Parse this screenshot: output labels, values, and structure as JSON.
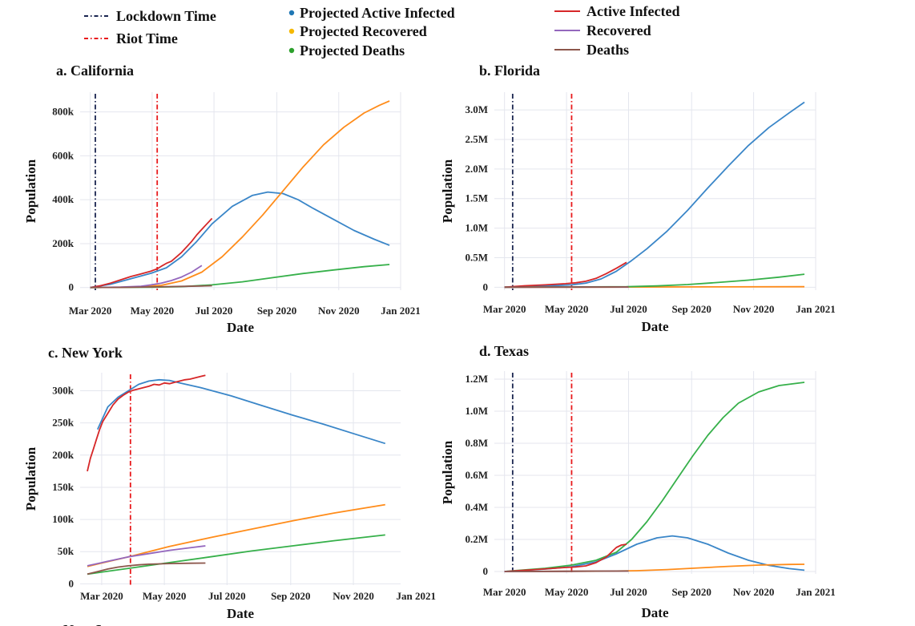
{
  "legend": {
    "items": [
      {
        "label": "Lockdown Time",
        "color": "#1a2550",
        "style": "dashdot",
        "kind": "line"
      },
      {
        "label": "Riot Time",
        "color": "#e8191c",
        "style": "dashdot",
        "kind": "line"
      },
      {
        "label": "Projected Active Infected",
        "color": "#1f77b4",
        "kind": "dot"
      },
      {
        "label": "Projected Recovered",
        "color": "#f5b800",
        "kind": "dot"
      },
      {
        "label": "Projected Deaths",
        "color": "#2ca02c",
        "kind": "dot"
      },
      {
        "label": "Active Infected",
        "color": "#d62728",
        "kind": "line"
      },
      {
        "label": "Recovered",
        "color": "#9467bd",
        "kind": "line"
      },
      {
        "label": "Deaths",
        "color": "#8c564b",
        "kind": "line"
      }
    ]
  },
  "colors": {
    "projected_active": "#3a86c8",
    "projected_recovered": "#ff8c1a",
    "projected_deaths": "#36b04a",
    "active": "#d62728",
    "recovered": "#9467bd",
    "deaths": "#8c564b",
    "lockdown": "#1a2550",
    "riot": "#e8191c",
    "grid": "#e4e6ee"
  },
  "chart_data": [
    {
      "id": "a",
      "type": "line",
      "prefix": "a.",
      "title": "California",
      "xlabel": "Date",
      "ylabel": "Population",
      "xlim": [
        -10,
        306
      ],
      "ylim": [
        -12000,
        890000
      ],
      "xticks": [
        {
          "v": 0,
          "label": "Mar 2020"
        },
        {
          "v": 61,
          "label": "May 2020"
        },
        {
          "v": 122,
          "label": "Jul 2020"
        },
        {
          "v": 184,
          "label": "Sep 2020"
        },
        {
          "v": 245,
          "label": "Nov 2020"
        },
        {
          "v": 306,
          "label": "Jan 2021"
        }
      ],
      "yticks": [
        {
          "v": 0,
          "label": "0"
        },
        {
          "v": 200000,
          "label": "200k"
        },
        {
          "v": 400000,
          "label": "400k"
        },
        {
          "v": 600000,
          "label": "600k"
        },
        {
          "v": 800000,
          "label": "800k"
        }
      ],
      "lockdown": 5,
      "riot": 66,
      "series": [
        {
          "name": "Projected Active Infected",
          "key": "projected_active",
          "x": [
            0,
            20,
            40,
            60,
            75,
            90,
            105,
            120,
            140,
            160,
            175,
            190,
            205,
            220,
            240,
            260,
            280,
            295
          ],
          "y": [
            0,
            15000,
            40000,
            65000,
            90000,
            140000,
            210000,
            290000,
            370000,
            420000,
            435000,
            428000,
            400000,
            360000,
            310000,
            260000,
            220000,
            192000
          ]
        },
        {
          "name": "Projected Recovered",
          "key": "projected_recovered",
          "x": [
            0,
            40,
            70,
            90,
            110,
            130,
            150,
            170,
            190,
            210,
            230,
            250,
            270,
            285,
            295
          ],
          "y": [
            0,
            2000,
            10000,
            30000,
            70000,
            140000,
            230000,
            330000,
            440000,
            550000,
            650000,
            730000,
            795000,
            830000,
            850000
          ]
        },
        {
          "name": "Projected Deaths",
          "key": "projected_deaths",
          "x": [
            0,
            60,
            90,
            120,
            150,
            180,
            210,
            240,
            270,
            295
          ],
          "y": [
            0,
            1500,
            4000,
            12000,
            26000,
            45000,
            64000,
            80000,
            95000,
            105000
          ]
        },
        {
          "name": "Active Infected",
          "key": "active",
          "x": [
            0,
            10,
            20,
            30,
            40,
            50,
            60,
            66,
            70,
            75,
            80,
            85,
            90,
            95,
            100,
            105,
            110,
            115,
            120
          ],
          "y": [
            0,
            8000,
            20000,
            35000,
            50000,
            62000,
            75000,
            85000,
            97000,
            110000,
            120000,
            140000,
            160000,
            185000,
            210000,
            240000,
            265000,
            290000,
            315000
          ]
        },
        {
          "name": "Recovered",
          "key": "recovered",
          "x": [
            0,
            30,
            50,
            60,
            70,
            80,
            90,
            100,
            110
          ],
          "y": [
            0,
            2000,
            6000,
            12000,
            20000,
            32000,
            48000,
            70000,
            100000
          ]
        },
        {
          "name": "Deaths",
          "key": "deaths",
          "x": [
            0,
            30,
            60,
            90,
            110,
            120
          ],
          "y": [
            0,
            500,
            2500,
            5000,
            7000,
            8000
          ]
        }
      ]
    },
    {
      "id": "b",
      "type": "line",
      "prefix": "b.",
      "title": "Florida",
      "xlabel": "Date",
      "ylabel": "Population",
      "xlim": [
        -10,
        306
      ],
      "ylim": [
        -50000,
        3300000
      ],
      "xticks": [
        {
          "v": 0,
          "label": "Mar 2020"
        },
        {
          "v": 61,
          "label": "May 2020"
        },
        {
          "v": 122,
          "label": "Jul 2020"
        },
        {
          "v": 184,
          "label": "Sep 2020"
        },
        {
          "v": 245,
          "label": "Nov 2020"
        },
        {
          "v": 306,
          "label": "Jan 2021"
        }
      ],
      "yticks": [
        {
          "v": 0,
          "label": "0"
        },
        {
          "v": 500000,
          "label": "0.5M"
        },
        {
          "v": 1000000,
          "label": "1.0M"
        },
        {
          "v": 1500000,
          "label": "1.5M"
        },
        {
          "v": 2000000,
          "label": "2.0M"
        },
        {
          "v": 2500000,
          "label": "2.5M"
        },
        {
          "v": 3000000,
          "label": "3.0M"
        }
      ],
      "lockdown": 8,
      "riot": 66,
      "series": [
        {
          "name": "Projected Active Infected",
          "key": "projected_active",
          "x": [
            0,
            40,
            66,
            80,
            95,
            110,
            125,
            140,
            160,
            180,
            200,
            220,
            240,
            260,
            280,
            295
          ],
          "y": [
            0,
            20000,
            40000,
            70000,
            140000,
            270000,
            450000,
            650000,
            950000,
            1300000,
            1680000,
            2050000,
            2400000,
            2700000,
            2950000,
            3130000
          ]
        },
        {
          "name": "Projected Recovered",
          "key": "projected_recovered",
          "x": [
            0,
            100,
            200,
            295
          ],
          "y": [
            0,
            2000,
            5000,
            8000
          ]
        },
        {
          "name": "Projected Deaths",
          "key": "projected_deaths",
          "x": [
            0,
            120,
            150,
            180,
            210,
            240,
            270,
            295
          ],
          "y": [
            0,
            8000,
            22000,
            45000,
            80000,
            120000,
            170000,
            220000
          ]
        },
        {
          "name": "Active Infected",
          "key": "active",
          "x": [
            0,
            20,
            40,
            60,
            70,
            80,
            90,
            100,
            110,
            120
          ],
          "y": [
            0,
            25000,
            40000,
            60000,
            75000,
            100000,
            150000,
            230000,
            320000,
            420000
          ]
        },
        {
          "name": "Recovered",
          "key": "recovered",
          "x": [
            0,
            60,
            122
          ],
          "y": [
            0,
            1000,
            2000
          ]
        },
        {
          "name": "Deaths",
          "key": "deaths",
          "x": [
            0,
            60,
            122
          ],
          "y": [
            0,
            2000,
            4000
          ]
        }
      ]
    },
    {
      "id": "c",
      "type": "line",
      "prefix": "c.",
      "title": "New York",
      "xlabel": "Date",
      "ylabel": "Population",
      "xlim": [
        -7,
        305
      ],
      "ylim": [
        -2000,
        328000
      ],
      "xticks": [
        {
          "v": 14,
          "label": "Mar 2020"
        },
        {
          "v": 75,
          "label": "May 2020"
        },
        {
          "v": 136,
          "label": "Jul 2020"
        },
        {
          "v": 198,
          "label": "Sep 2020"
        },
        {
          "v": 259,
          "label": "Nov 2020"
        },
        {
          "v": 320,
          "label": "Jan 2021"
        }
      ],
      "yticks": [
        {
          "v": 0,
          "label": "0"
        },
        {
          "v": 50000,
          "label": "50k"
        },
        {
          "v": 100000,
          "label": "100k"
        },
        {
          "v": 150000,
          "label": "150k"
        },
        {
          "v": 200000,
          "label": "200k"
        },
        {
          "v": 250000,
          "label": "250k"
        },
        {
          "v": 300000,
          "label": "300k"
        }
      ],
      "lockdown": null,
      "riot": 42,
      "series": [
        {
          "name": "Projected Active Infected",
          "key": "projected_active",
          "x": [
            10,
            20,
            30,
            40,
            50,
            60,
            70,
            80,
            90,
            110,
            140,
            170,
            200,
            230,
            260,
            290
          ],
          "y": [
            240000,
            275000,
            290000,
            300000,
            310000,
            315000,
            317000,
            316000,
            312000,
            305000,
            292000,
            277000,
            262000,
            248000,
            233000,
            218000
          ]
        },
        {
          "name": "Projected Recovered",
          "key": "projected_recovered",
          "x": [
            0,
            40,
            80,
            120,
            160,
            200,
            240,
            290
          ],
          "y": [
            27000,
            42000,
            58000,
            72000,
            85000,
            98000,
            110000,
            123000
          ]
        },
        {
          "name": "Projected Deaths",
          "key": "projected_deaths",
          "x": [
            0,
            40,
            80,
            120,
            160,
            200,
            240,
            290
          ],
          "y": [
            15000,
            24000,
            33000,
            42000,
            51000,
            59000,
            67000,
            76000
          ]
        },
        {
          "name": "Active Infected",
          "key": "active",
          "x": [
            0,
            3,
            6,
            9,
            12,
            15,
            20,
            25,
            30,
            35,
            40,
            45,
            50,
            55,
            60,
            65,
            70,
            75,
            80,
            85,
            90,
            95,
            100,
            105,
            110,
            115
          ],
          "y": [
            175000,
            195000,
            210000,
            225000,
            240000,
            252000,
            265000,
            278000,
            287000,
            293000,
            298000,
            301000,
            303000,
            305000,
            307000,
            310000,
            309000,
            312000,
            311000,
            313000,
            315000,
            317000,
            318000,
            320000,
            322000,
            324000
          ]
        },
        {
          "name": "Recovered",
          "key": "recovered",
          "x": [
            0,
            20,
            40,
            60,
            80,
            100,
            115
          ],
          "y": [
            28000,
            35000,
            42000,
            47000,
            52000,
            56000,
            59000
          ]
        },
        {
          "name": "Deaths",
          "key": "deaths",
          "x": [
            0,
            10,
            20,
            30,
            40,
            50,
            60,
            80,
            100,
            115
          ],
          "y": [
            15000,
            19000,
            23000,
            26000,
            28000,
            29500,
            30500,
            31500,
            32000,
            32300
          ]
        }
      ]
    },
    {
      "id": "d",
      "type": "line",
      "prefix": "d.",
      "title": "Texas",
      "xlabel": "Date",
      "ylabel": "Population",
      "xlim": [
        -10,
        306
      ],
      "ylim": [
        -15000,
        1250000
      ],
      "xticks": [
        {
          "v": 0,
          "label": "Mar 2020"
        },
        {
          "v": 61,
          "label": "May 2020"
        },
        {
          "v": 122,
          "label": "Jul 2020"
        },
        {
          "v": 184,
          "label": "Sep 2020"
        },
        {
          "v": 245,
          "label": "Nov 2020"
        },
        {
          "v": 306,
          "label": "Jan 2021"
        }
      ],
      "yticks": [
        {
          "v": 0,
          "label": "0"
        },
        {
          "v": 200000,
          "label": "0.2M"
        },
        {
          "v": 400000,
          "label": "0.4M"
        },
        {
          "v": 600000,
          "label": "0.6M"
        },
        {
          "v": 800000,
          "label": "0.8M"
        },
        {
          "v": 1000000,
          "label": "1.0M"
        },
        {
          "v": 1200000,
          "label": "1.2M"
        }
      ],
      "lockdown": 8,
      "riot": 66,
      "series": [
        {
          "name": "Projected Active Infected",
          "key": "projected_active",
          "x": [
            0,
            40,
            66,
            90,
            110,
            130,
            150,
            165,
            180,
            200,
            220,
            240,
            260,
            280,
            295
          ],
          "y": [
            0,
            15000,
            30000,
            60000,
            110000,
            170000,
            210000,
            222000,
            210000,
            170000,
            115000,
            70000,
            38000,
            18000,
            8000
          ]
        },
        {
          "name": "Projected Recovered",
          "key": "projected_recovered",
          "x": [
            0,
            100,
            130,
            160,
            190,
            220,
            250,
            280,
            295
          ],
          "y": [
            0,
            2000,
            5000,
            12000,
            22000,
            32000,
            40000,
            44000,
            45000
          ]
        },
        {
          "name": "Projected Deaths",
          "key": "projected_deaths",
          "x": [
            0,
            40,
            66,
            90,
            110,
            125,
            140,
            155,
            170,
            185,
            200,
            215,
            230,
            250,
            270,
            295
          ],
          "y": [
            0,
            20000,
            40000,
            70000,
            120000,
            200000,
            310000,
            440000,
            580000,
            720000,
            850000,
            960000,
            1050000,
            1120000,
            1160000,
            1180000
          ]
        },
        {
          "name": "Active Infected",
          "key": "active",
          "x": [
            0,
            30,
            60,
            70,
            80,
            90,
            100,
            110,
            115,
            120
          ],
          "y": [
            0,
            12000,
            25000,
            28000,
            35000,
            55000,
            90000,
            150000,
            165000,
            170000
          ]
        },
        {
          "name": "Recovered",
          "key": "recovered",
          "x": [
            0,
            60,
            122
          ],
          "y": [
            0,
            1000,
            3000
          ]
        },
        {
          "name": "Deaths",
          "key": "deaths",
          "x": [
            0,
            60,
            122
          ],
          "y": [
            0,
            1500,
            3000
          ]
        }
      ]
    }
  ],
  "cutoff_labels": {
    "left": "e. New Jersey"
  }
}
